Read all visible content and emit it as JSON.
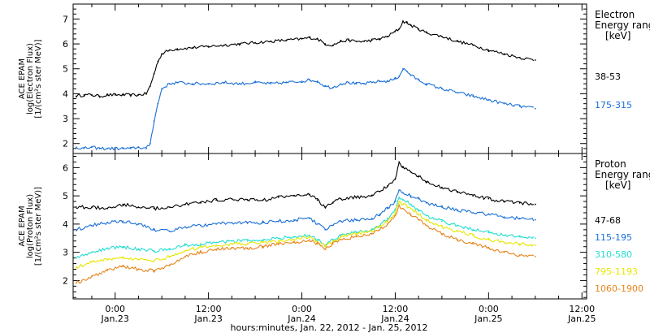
{
  "colors": {
    "black": "#000000",
    "blue": "#1a6fd8",
    "cyan": "#22ddd0",
    "yellow": "#e6e600",
    "orange": "#e8841a",
    "frame": "#000000"
  },
  "chart_data": [
    {
      "type": "scatter",
      "panel": "electron",
      "ylabel_lines": [
        "ACE EPAM",
        "log(Electron Flux)",
        "[1/(cm²s ster MeV)]"
      ],
      "ylim": [
        1.6,
        7.6
      ],
      "y_ticks": [
        2,
        3,
        4,
        5,
        6,
        7
      ],
      "legend_title_lines": [
        "Electron",
        "Energy ranges",
        "[keV]"
      ],
      "series": [
        {
          "name": "38-53",
          "color": "black",
          "x": [
            -5,
            -4,
            -3,
            -2,
            -1,
            0,
            1,
            2,
            3,
            4,
            4.5,
            5,
            5.5,
            6,
            7,
            8,
            10,
            12,
            14,
            16,
            18,
            20,
            22,
            24,
            25,
            26,
            27,
            28,
            29,
            30,
            31,
            32,
            33,
            34,
            35,
            36,
            36.5,
            37,
            37.5,
            38,
            39,
            40,
            42,
            44,
            46,
            48,
            50,
            52,
            54
          ],
          "y": [
            3.9,
            3.95,
            3.95,
            3.9,
            3.95,
            3.95,
            3.95,
            3.95,
            3.95,
            4.0,
            4.3,
            4.8,
            5.3,
            5.6,
            5.75,
            5.8,
            5.85,
            5.9,
            5.95,
            6.0,
            6.05,
            6.1,
            6.15,
            6.2,
            6.25,
            6.2,
            6.0,
            5.95,
            6.1,
            6.15,
            6.1,
            6.1,
            6.15,
            6.2,
            6.3,
            6.5,
            6.6,
            6.9,
            6.85,
            6.75,
            6.6,
            6.45,
            6.3,
            6.1,
            5.95,
            5.75,
            5.6,
            5.45,
            5.35
          ]
        },
        {
          "name": "175-315",
          "color": "blue",
          "x": [
            -5,
            -4,
            -3,
            -2,
            -1,
            0,
            1,
            2,
            3,
            4,
            4.5,
            5,
            5.5,
            6,
            7,
            8,
            10,
            12,
            14,
            16,
            18,
            20,
            22,
            24,
            25,
            26,
            27,
            28,
            29,
            30,
            31,
            32,
            33,
            34,
            35,
            36,
            36.5,
            37,
            37.5,
            38,
            39,
            40,
            42,
            44,
            46,
            48,
            50,
            52,
            54
          ],
          "y": [
            1.85,
            1.8,
            1.85,
            1.8,
            1.8,
            1.8,
            1.8,
            1.8,
            1.85,
            1.8,
            2.0,
            2.9,
            3.6,
            4.2,
            4.4,
            4.45,
            4.4,
            4.4,
            4.45,
            4.4,
            4.45,
            4.4,
            4.45,
            4.5,
            4.55,
            4.5,
            4.3,
            4.25,
            4.4,
            4.45,
            4.4,
            4.4,
            4.45,
            4.5,
            4.5,
            4.6,
            4.7,
            5.0,
            4.9,
            4.75,
            4.55,
            4.4,
            4.2,
            4.05,
            3.9,
            3.75,
            3.6,
            3.5,
            3.4
          ]
        }
      ]
    },
    {
      "type": "scatter",
      "panel": "proton",
      "ylabel_lines": [
        "ACE EPAM",
        "log(Proton Flux)",
        "[1/(cm²s ster MeV)]"
      ],
      "ylim": [
        1.35,
        6.5
      ],
      "y_ticks": [
        2,
        3,
        4,
        5,
        6
      ],
      "legend_title_lines": [
        "Proton",
        "Energy ranges",
        "[keV]"
      ],
      "x_tick_labels": [
        {
          "time": "0:00",
          "date": "Jan.23"
        },
        {
          "time": "12:00",
          "date": "Jan.23"
        },
        {
          "time": "0:00",
          "date": "Jan.24"
        },
        {
          "time": "12:00",
          "date": "Jan.24"
        },
        {
          "time": "0:00",
          "date": "Jan.25"
        },
        {
          "time": "12:00",
          "date": "Jan.25"
        }
      ],
      "xlim": [
        -5.4,
        60.6
      ],
      "xlabel": "hours:minutes, Jan. 22, 2012 - Jan. 25, 2012",
      "series": [
        {
          "name": "47-68",
          "color": "black",
          "x": [
            -5,
            -3,
            -1,
            1,
            3,
            5,
            7,
            9,
            11,
            13,
            15,
            17,
            19,
            21,
            23,
            25,
            26,
            27,
            28,
            29,
            31,
            33,
            34,
            35,
            36,
            36.5,
            37,
            38,
            39,
            40,
            42,
            44,
            46,
            48,
            50,
            52,
            54
          ],
          "y": [
            4.6,
            4.6,
            4.55,
            4.7,
            4.6,
            4.55,
            4.6,
            4.7,
            4.75,
            4.85,
            4.9,
            4.85,
            4.85,
            4.95,
            5.0,
            5.05,
            4.85,
            4.6,
            4.75,
            4.9,
            4.95,
            5.0,
            5.15,
            5.35,
            5.6,
            6.2,
            6.0,
            5.85,
            5.7,
            5.5,
            5.3,
            5.15,
            5.0,
            4.9,
            4.8,
            4.75,
            4.7
          ]
        },
        {
          "name": "115-195",
          "color": "blue",
          "x": [
            -5,
            -3,
            -1,
            1,
            3,
            5,
            7,
            9,
            11,
            13,
            15,
            17,
            19,
            21,
            23,
            25,
            26,
            27,
            28,
            29,
            31,
            33,
            34,
            35,
            36,
            36.5,
            37,
            38,
            39,
            40,
            42,
            44,
            46,
            48,
            50,
            52,
            54
          ],
          "y": [
            3.8,
            3.95,
            4.05,
            4.1,
            4.0,
            3.8,
            3.75,
            3.9,
            3.95,
            4.0,
            4.05,
            4.05,
            4.05,
            4.1,
            4.15,
            4.2,
            4.0,
            3.8,
            3.95,
            4.1,
            4.15,
            4.2,
            4.35,
            4.55,
            4.8,
            5.2,
            5.1,
            5.0,
            4.9,
            4.75,
            4.6,
            4.5,
            4.4,
            4.35,
            4.25,
            4.2,
            4.15
          ]
        },
        {
          "name": "310-580",
          "color": "cyan",
          "x": [
            -5,
            -3,
            -1,
            1,
            3,
            5,
            7,
            9,
            11,
            13,
            15,
            17,
            19,
            21,
            23,
            25,
            26,
            27,
            28,
            29,
            31,
            33,
            34,
            35,
            36,
            36.5,
            37,
            38,
            39,
            40,
            42,
            44,
            46,
            48,
            50,
            52,
            54
          ],
          "y": [
            2.8,
            3.0,
            3.15,
            3.2,
            3.1,
            3.05,
            3.1,
            3.25,
            3.3,
            3.35,
            3.4,
            3.4,
            3.45,
            3.5,
            3.55,
            3.6,
            3.45,
            3.25,
            3.45,
            3.6,
            3.7,
            3.8,
            3.95,
            4.2,
            4.5,
            4.95,
            4.85,
            4.7,
            4.5,
            4.3,
            4.1,
            3.95,
            3.8,
            3.7,
            3.6,
            3.55,
            3.5
          ]
        },
        {
          "name": "795-1193",
          "color": "yellow",
          "x": [
            -5,
            -3,
            -1,
            1,
            3,
            5,
            7,
            9,
            11,
            13,
            15,
            17,
            19,
            21,
            23,
            25,
            26,
            27,
            28,
            29,
            31,
            33,
            34,
            35,
            36,
            36.5,
            37,
            38,
            39,
            40,
            42,
            44,
            46,
            48,
            50,
            52,
            54
          ],
          "y": [
            2.45,
            2.65,
            2.75,
            2.8,
            2.75,
            2.7,
            2.85,
            3.05,
            3.2,
            3.25,
            3.3,
            3.3,
            3.35,
            3.4,
            3.45,
            3.55,
            3.4,
            3.2,
            3.4,
            3.55,
            3.65,
            3.75,
            3.9,
            4.1,
            4.4,
            4.8,
            4.7,
            4.55,
            4.35,
            4.15,
            3.9,
            3.75,
            3.6,
            3.45,
            3.35,
            3.3,
            3.25
          ]
        },
        {
          "name": "1060-1900",
          "color": "orange",
          "x": [
            -5,
            -3,
            -1,
            1,
            3,
            5,
            7,
            9,
            11,
            13,
            15,
            17,
            19,
            21,
            23,
            25,
            26,
            27,
            28,
            29,
            31,
            33,
            34,
            35,
            36,
            36.5,
            37,
            38,
            39,
            40,
            42,
            44,
            46,
            48,
            50,
            52,
            54
          ],
          "y": [
            1.9,
            2.15,
            2.35,
            2.5,
            2.4,
            2.35,
            2.55,
            2.85,
            3.0,
            3.1,
            3.15,
            3.15,
            3.2,
            3.3,
            3.35,
            3.45,
            3.3,
            3.1,
            3.3,
            3.45,
            3.55,
            3.65,
            3.8,
            4.0,
            4.3,
            4.65,
            4.55,
            4.35,
            4.15,
            3.95,
            3.65,
            3.45,
            3.3,
            3.15,
            3.0,
            2.9,
            2.85
          ]
        }
      ]
    }
  ]
}
